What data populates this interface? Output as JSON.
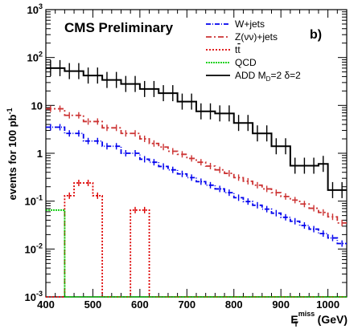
{
  "chart_data": {
    "type": "line",
    "yscale": "log",
    "xlim": [
      400,
      1040
    ],
    "ylim": [
      0.001,
      1000
    ],
    "x_ticks": [
      400,
      500,
      600,
      700,
      800,
      900,
      1000
    ],
    "y_ticks": [
      {
        "value": 0.001,
        "base": "10",
        "exp": "-3"
      },
      {
        "value": 0.01,
        "base": "10",
        "exp": "-2"
      },
      {
        "value": 0.1,
        "base": "10",
        "exp": "-1"
      },
      {
        "value": 1,
        "base": "1",
        "exp": ""
      },
      {
        "value": 10,
        "base": "10",
        "exp": ""
      },
      {
        "value": 100,
        "base": "10",
        "exp": "2"
      },
      {
        "value": 1000,
        "base": "10",
        "exp": "3"
      }
    ],
    "ylabel": {
      "main": "events for 100 pb",
      "sup": "-1"
    },
    "xlabel": {
      "e": "E",
      "sub": "T",
      "sup": "miss",
      "unit": " (GeV)"
    },
    "experiment_label": "CMS Preliminary",
    "panel_label": "b)",
    "legend_position": "top-right",
    "bin_edges": [
      400,
      420,
      440,
      460,
      480,
      500,
      520,
      540,
      560,
      580,
      600,
      620,
      640,
      660,
      680,
      700,
      720,
      740,
      760,
      780,
      800,
      820,
      840,
      860,
      880,
      900,
      920,
      940,
      960,
      980,
      1000,
      1020,
      1040
    ],
    "series": [
      {
        "name": "W+jets",
        "legend": {
          "main": "W+jets"
        },
        "color": "#0000ee",
        "dash": "6 2 1 2",
        "errors": true,
        "values": [
          3.5,
          3.5,
          2.6,
          2.6,
          1.8,
          1.8,
          1.4,
          1.4,
          1.0,
          1.0,
          0.75,
          0.65,
          0.53,
          0.45,
          0.37,
          0.31,
          0.255,
          0.215,
          0.18,
          0.15,
          0.118,
          0.098,
          0.082,
          0.068,
          0.056,
          0.046,
          0.038,
          0.031,
          0.026,
          0.021,
          0.017,
          0.013
        ]
      },
      {
        "name": "Z(νν)+jets",
        "legend": {
          "main": "Z(νν)+jets"
        },
        "color": "#cc3333",
        "dash": "7 3 2 3",
        "errors": true,
        "values": [
          8.5,
          8.5,
          6.2,
          6.2,
          4.6,
          4.6,
          3.4,
          3.4,
          2.6,
          2.6,
          2.0,
          1.6,
          1.35,
          1.1,
          0.95,
          0.78,
          0.65,
          0.54,
          0.45,
          0.38,
          0.31,
          0.26,
          0.215,
          0.18,
          0.15,
          0.125,
          0.105,
          0.087,
          0.071,
          0.058,
          0.047,
          0.035
        ]
      },
      {
        "name": "tt̄",
        "legend": {
          "main": "t",
          "over": "t"
        },
        "color": "#dd0000",
        "dash": "2 2",
        "errors": true,
        "values": [
          0.001,
          0.001,
          0.13,
          0.24,
          0.24,
          0.13,
          0.001,
          0.001,
          0.001,
          0.065,
          0.065,
          0.001,
          0.001,
          0.001,
          0.001,
          0.001,
          0.001,
          0.001,
          0.001,
          0.001,
          0.001,
          0.001,
          0.001,
          0.001,
          0.001,
          0.001,
          0.001,
          0.001,
          0.001,
          0.001,
          0.001,
          0.001
        ]
      },
      {
        "name": "QCD",
        "legend": {
          "main": "QCD"
        },
        "color": "#00cc00",
        "dash": "2 1",
        "errors": false,
        "values": [
          0.065,
          0.065,
          0.001,
          0.001,
          0.001,
          0.001,
          0.001,
          0.001,
          0.001,
          0.001,
          0.001,
          0.001,
          0.001,
          0.001,
          0.001,
          0.001,
          0.001,
          0.001,
          0.001,
          0.001,
          0.001,
          0.001,
          0.001,
          0.001,
          0.001,
          0.001,
          0.001,
          0.001,
          0.001,
          0.001,
          0.001,
          0.001
        ]
      },
      {
        "name": "ADD M_D=2 δ=2",
        "legend": {
          "main": "ADD M",
          "sub": "D",
          "rest": "=2 δ=2"
        },
        "color": "#000000",
        "dash": "",
        "errors": true,
        "values": [
          60,
          60,
          52,
          52,
          42,
          42,
          34,
          34,
          28,
          28,
          22,
          22,
          18,
          18,
          12,
          12,
          7.5,
          7.5,
          6.8,
          6.8,
          4.3,
          4.3,
          2.6,
          2.6,
          1.4,
          1.4,
          0.55,
          0.55,
          0.55,
          0.6,
          0.17,
          0.17
        ]
      }
    ]
  }
}
